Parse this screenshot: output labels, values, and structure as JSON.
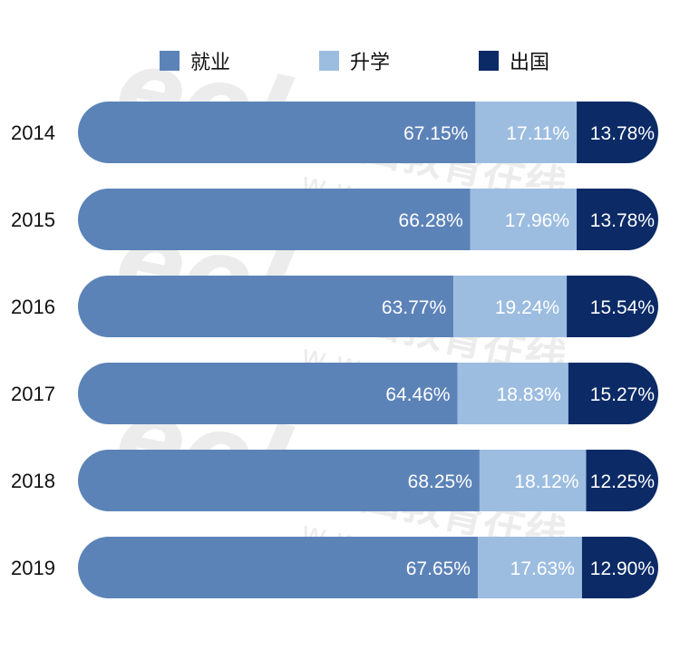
{
  "colors": {
    "jiuye": "#5c83b8",
    "shengxue": "#9cbde0",
    "chuguo": "#0b2a66",
    "text_dark": "#111111",
    "text_light": "#ffffff"
  },
  "legend": {
    "items": [
      {
        "label": "就业",
        "color": "#5c83b8"
      },
      {
        "label": "升学",
        "color": "#9cbde0"
      },
      {
        "label": "出国",
        "color": "#0b2a66"
      }
    ]
  },
  "watermark": {
    "cn": "中国教育在线",
    "url": "w w w . e o l . c n",
    "logo": "eol"
  },
  "chart_data": {
    "type": "bar",
    "orientation": "horizontal",
    "stacked": true,
    "categories": [
      "2014",
      "2015",
      "2016",
      "2017",
      "2018",
      "2019"
    ],
    "series": [
      {
        "name": "就业",
        "values": [
          67.15,
          66.28,
          63.77,
          64.46,
          68.25,
          67.65
        ]
      },
      {
        "name": "升学",
        "values": [
          17.11,
          17.96,
          19.24,
          18.83,
          18.12,
          17.63
        ]
      },
      {
        "name": "出国",
        "values": [
          13.78,
          13.78,
          15.54,
          15.27,
          12.25,
          12.9
        ]
      }
    ],
    "rows": [
      {
        "year": "2014",
        "jiuye_label": "67.15%",
        "shengxue_label": "17.11%",
        "chuguo_label": "13.78%"
      },
      {
        "year": "2015",
        "jiuye_label": "66.28%",
        "shengxue_label": "17.96%",
        "chuguo_label": "13.78%"
      },
      {
        "year": "2016",
        "jiuye_label": "63.77%",
        "shengxue_label": "19.24%",
        "chuguo_label": "15.54%"
      },
      {
        "year": "2017",
        "jiuye_label": "64.46%",
        "shengxue_label": "18.83%",
        "chuguo_label": "15.27%"
      },
      {
        "year": "2018",
        "jiuye_label": "68.25%",
        "shengxue_label": "18.12%",
        "chuguo_label": "12.25%"
      },
      {
        "year": "2019",
        "jiuye_label": "67.65%",
        "shengxue_label": "17.63%",
        "chuguo_label": "12.90%"
      }
    ],
    "legend_position": "top-center",
    "grid": false,
    "title": "",
    "xlabel": "",
    "ylabel": ""
  }
}
